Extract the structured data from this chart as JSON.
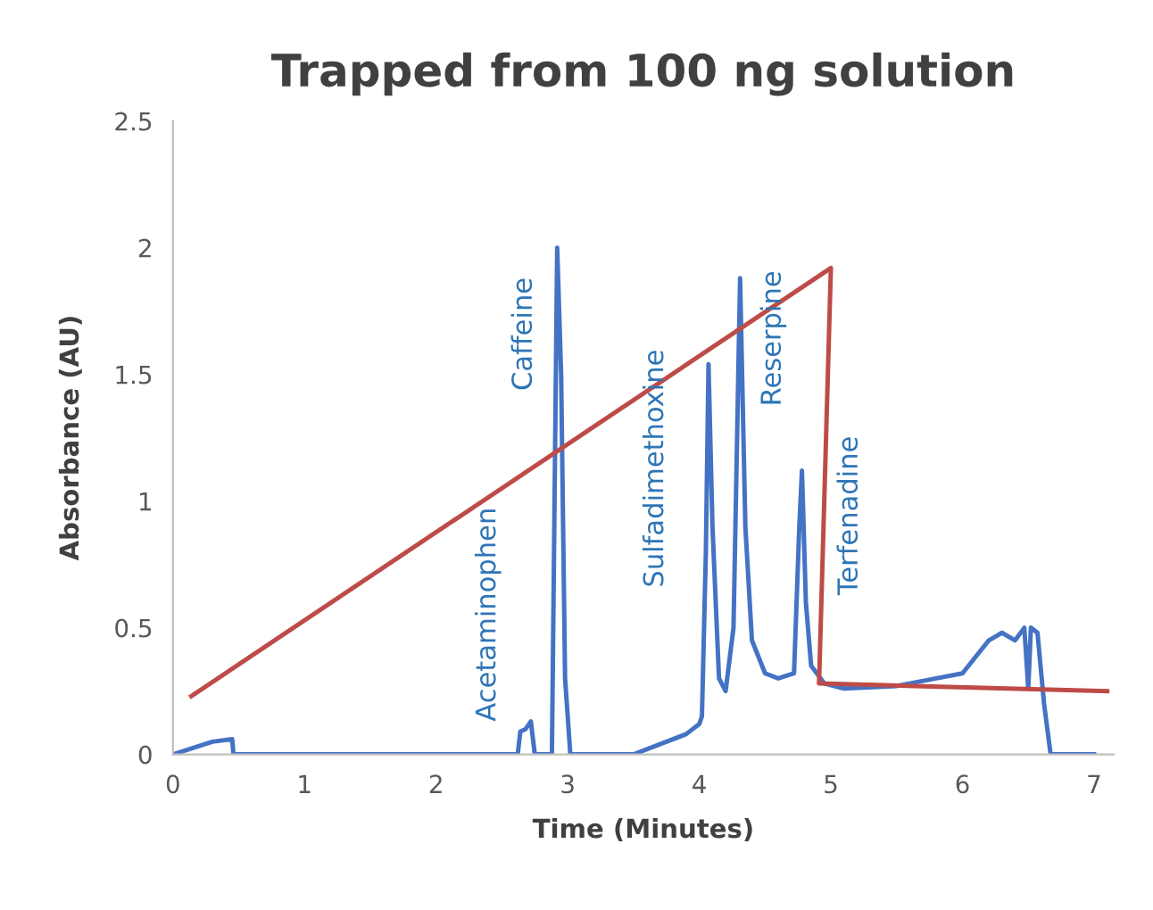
{
  "chart_data": {
    "type": "line",
    "title": "Trapped from 100 ng solution",
    "xlabel": "Time (Minutes)",
    "ylabel": "Absorbance (AU)",
    "xlim": [
      0,
      7.15
    ],
    "xticks": [
      0,
      1,
      2,
      3,
      4,
      5,
      6,
      7
    ],
    "ylim": [
      0,
      2.5
    ],
    "yticks": [
      0,
      0.5,
      1,
      1.5,
      2,
      2.5
    ],
    "grid": false,
    "legend": false,
    "marker": "none",
    "line_style": "solid",
    "series": [
      {
        "color": "#4472c4",
        "x": [
          0,
          0.3,
          0.45,
          0.46,
          2.62,
          2.64,
          2.68,
          2.72,
          2.75,
          2.88,
          2.92,
          2.95,
          2.98,
          3.02,
          3.5,
          3.9,
          4.0,
          4.02,
          4.05,
          4.07,
          4.1,
          4.15,
          4.2,
          4.26,
          4.31,
          4.35,
          4.4,
          4.5,
          4.6,
          4.72,
          4.76,
          4.78,
          4.81,
          4.85,
          4.95,
          5.1,
          5.5,
          5.8,
          6.0,
          6.2,
          6.3,
          6.4,
          6.47,
          6.5,
          6.52,
          6.57,
          6.62,
          6.67,
          7.0
        ],
        "values": [
          0,
          0.05,
          0.06,
          0,
          0,
          0.09,
          0.1,
          0.13,
          0,
          0,
          2.0,
          1.5,
          0.3,
          0,
          0,
          0.08,
          0.12,
          0.15,
          0.8,
          1.54,
          0.9,
          0.3,
          0.25,
          0.5,
          1.88,
          0.9,
          0.45,
          0.32,
          0.3,
          0.32,
          0.9,
          1.12,
          0.6,
          0.35,
          0.28,
          0.26,
          0.27,
          0.3,
          0.32,
          0.45,
          0.48,
          0.45,
          0.5,
          0.26,
          0.5,
          0.48,
          0.2,
          0,
          0
        ]
      },
      {
        "color": "#be4b48",
        "x": [
          0.14,
          5.0,
          4.91,
          7.1
        ],
        "values": [
          0.23,
          1.92,
          0.28,
          0.25
        ]
      }
    ],
    "annotations": [
      {
        "text": "Acetaminophen",
        "x": 2.72,
        "y": 0.13
      },
      {
        "text": "Caffeine",
        "x": 2.92,
        "y": 2.0
      },
      {
        "text": "Sulfadimethoxine",
        "x": 4.07,
        "y": 1.54
      },
      {
        "text": "Reserpine",
        "x": 4.31,
        "y": 1.88
      },
      {
        "text": "Terfenadine",
        "x": 4.78,
        "y": 1.12
      }
    ]
  }
}
